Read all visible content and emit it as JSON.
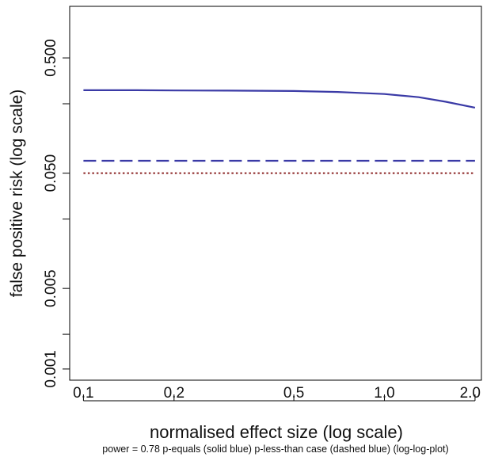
{
  "chart_data": {
    "type": "line",
    "title": "",
    "xlabel": "normalised effect size (log scale)",
    "ylabel": "false positive risk (log scale)",
    "subtitle": "power = 0.78 p-equals (solid blue) p-less-than case (dashed blue) (log-log-plot)",
    "x_scale": "log",
    "y_scale": "log",
    "xlim": [
      0.09,
      2.1
    ],
    "ylim": [
      0.0008,
      1.4
    ],
    "x_ticks": [
      0.1,
      0.2,
      0.5,
      1.0,
      2.0
    ],
    "x_tick_labels": [
      "0.1",
      "0.2",
      "0.5",
      "1.0",
      "2.0"
    ],
    "y_ticks": [
      0.001,
      0.005,
      0.05,
      0.5
    ],
    "y_tick_labels": [
      "0.001",
      "0.005",
      "0.050",
      "0.500"
    ],
    "y_minor_ticks": [
      0.002,
      0.02,
      0.2
    ],
    "grid": false,
    "legend": "none",
    "series": [
      {
        "style": "solid",
        "color": "#3a3aa6",
        "x": [
          0.1,
          0.15,
          0.2,
          0.3,
          0.5,
          0.7,
          1.0,
          1.3,
          1.6,
          2.0
        ],
        "y": [
          0.262,
          0.262,
          0.261,
          0.26,
          0.258,
          0.253,
          0.243,
          0.228,
          0.208,
          0.185
        ]
      },
      {
        "style": "dashed",
        "color": "#3a3aa6",
        "x": [
          0.1,
          2.0
        ],
        "y": [
          0.064,
          0.064
        ]
      },
      {
        "style": "dotted",
        "color": "#8b2323",
        "x": [
          0.1,
          2.0
        ],
        "y": [
          0.05,
          0.05
        ]
      }
    ]
  }
}
